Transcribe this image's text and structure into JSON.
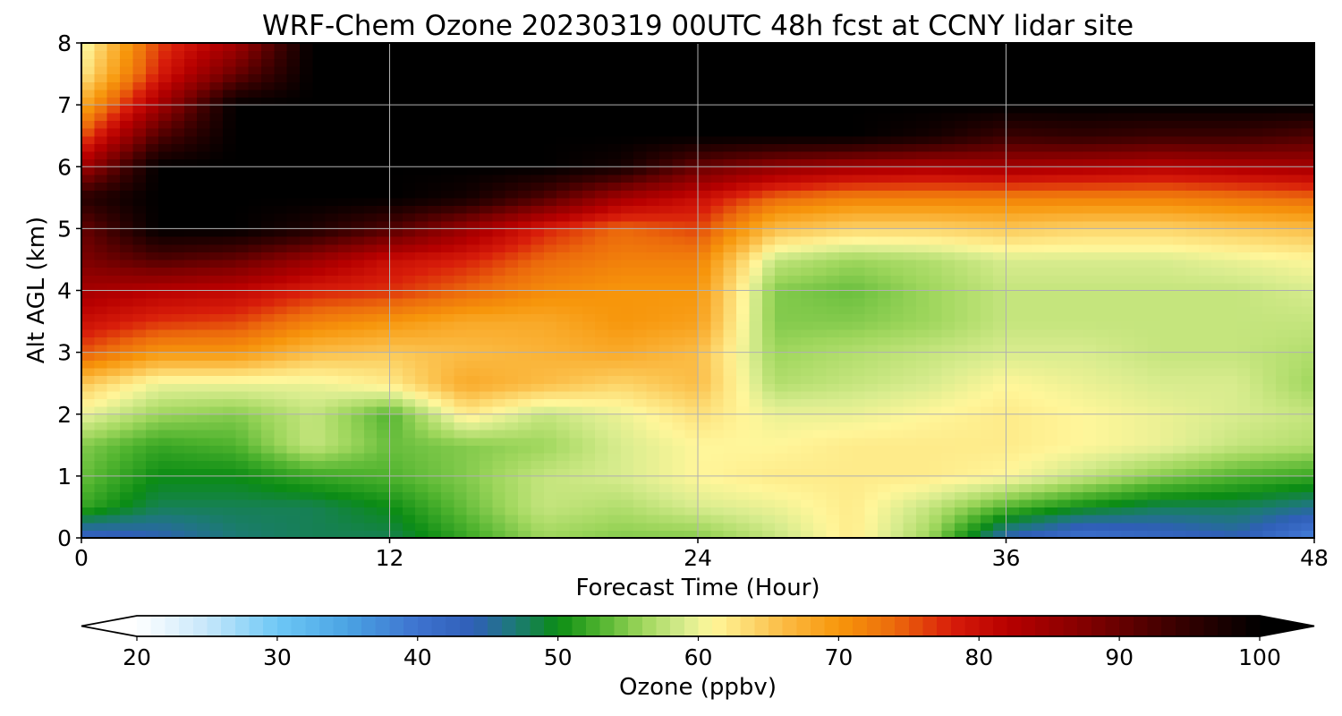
{
  "chart_data": {
    "type": "heatmap",
    "title": "WRF-Chem Ozone  20230319 00UTC 48h fcst at CCNY lidar site",
    "xlabel": "Forecast Time (Hour)",
    "ylabel": "Alt AGL (km)",
    "xlim": [
      0,
      48
    ],
    "ylim": [
      0,
      8
    ],
    "xticks": [
      "0",
      "12",
      "24",
      "36",
      "48"
    ],
    "yticks": [
      "0",
      "1",
      "2",
      "3",
      "4",
      "5",
      "6",
      "7",
      "8"
    ],
    "grid": true,
    "x_hours": [
      0,
      3,
      6,
      9,
      12,
      15,
      18,
      21,
      24,
      27,
      30,
      33,
      36,
      39,
      42,
      45,
      48
    ],
    "y_km": [
      0,
      0.5,
      1,
      1.5,
      2,
      2.5,
      3,
      3.5,
      4,
      4.5,
      5,
      5.5,
      6,
      6.5,
      7,
      7.5,
      8
    ],
    "ozone_ppbv": [
      [
        42,
        44,
        47,
        48,
        48,
        52,
        56,
        55,
        55,
        58,
        62,
        56,
        44,
        40,
        42,
        44,
        38
      ],
      [
        52,
        48,
        48,
        48,
        50,
        54,
        58,
        57,
        59,
        60,
        62,
        58,
        53,
        50,
        48,
        48,
        46
      ],
      [
        54,
        50,
        50,
        52,
        53,
        55,
        58,
        59,
        61,
        62,
        62,
        62,
        61,
        58,
        55,
        53,
        52
      ],
      [
        55,
        52,
        53,
        58,
        54,
        55,
        56,
        59,
        61,
        61,
        62,
        62,
        62,
        61,
        60,
        58,
        57
      ],
      [
        60,
        56,
        55,
        58,
        53,
        62,
        58,
        60,
        63,
        60,
        60,
        61,
        62,
        61,
        60,
        59,
        58
      ],
      [
        65,
        60,
        60,
        60,
        62,
        68,
        66,
        64,
        66,
        57,
        58,
        59,
        61,
        60,
        59,
        59,
        56
      ],
      [
        75,
        70,
        70,
        66,
        65,
        66,
        67,
        68,
        66,
        56,
        57,
        58,
        59,
        59,
        58,
        58,
        57
      ],
      [
        80,
        77,
        76,
        72,
        70,
        68,
        68,
        70,
        69,
        55,
        55,
        56,
        58,
        58,
        58,
        58,
        58
      ],
      [
        84,
        82,
        81,
        78,
        77,
        74,
        71,
        70,
        70,
        55,
        54,
        56,
        58,
        58,
        58,
        58,
        59
      ],
      [
        88,
        92,
        90,
        85,
        80,
        78,
        74,
        72,
        72,
        58,
        56,
        57,
        59,
        59,
        59,
        60,
        61
      ],
      [
        90,
        100,
        100,
        97,
        92,
        85,
        78,
        74,
        76,
        66,
        64,
        64,
        65,
        64,
        64,
        65,
        66
      ],
      [
        96,
        100,
        100,
        100,
        100,
        98,
        92,
        84,
        80,
        74,
        72,
        72,
        72,
        72,
        72,
        73,
        74
      ],
      [
        84,
        100,
        100,
        100,
        100,
        100,
        100,
        98,
        90,
        86,
        84,
        83,
        84,
        83,
        82,
        83,
        84
      ],
      [
        75,
        92,
        100,
        100,
        100,
        100,
        100,
        100,
        100,
        100,
        100,
        98,
        94,
        95,
        94,
        94,
        92
      ],
      [
        68,
        84,
        100,
        100,
        100,
        100,
        100,
        100,
        100,
        100,
        100,
        100,
        100,
        100,
        100,
        100,
        100
      ],
      [
        62,
        78,
        90,
        100,
        100,
        100,
        100,
        100,
        100,
        100,
        100,
        100,
        100,
        100,
        100,
        100,
        100
      ],
      [
        60,
        76,
        84,
        100,
        100,
        100,
        100,
        100,
        100,
        100,
        100,
        100,
        100,
        100,
        100,
        100,
        100
      ]
    ],
    "colorbar": {
      "label": "Ozone  (ppbv)",
      "min": 20,
      "max": 100,
      "ticks": [
        "20",
        "30",
        "40",
        "50",
        "60",
        "70",
        "80",
        "90",
        "100"
      ],
      "extend": "both"
    },
    "colormap": [
      {
        "v": 20,
        "c": "#ffffff"
      },
      {
        "v": 25,
        "c": "#c6e7fa"
      },
      {
        "v": 30,
        "c": "#6ec8f6"
      },
      {
        "v": 35,
        "c": "#4aa3e3"
      },
      {
        "v": 40,
        "c": "#3e72cf"
      },
      {
        "v": 44,
        "c": "#2f5fb7"
      },
      {
        "v": 47,
        "c": "#1c7a75"
      },
      {
        "v": 50,
        "c": "#0b8c14"
      },
      {
        "v": 53,
        "c": "#4fb32e"
      },
      {
        "v": 56,
        "c": "#9ed65c"
      },
      {
        "v": 59,
        "c": "#d8ec8e"
      },
      {
        "v": 61,
        "c": "#fff69a"
      },
      {
        "v": 63,
        "c": "#fde07a"
      },
      {
        "v": 66,
        "c": "#fbbc45"
      },
      {
        "v": 70,
        "c": "#f7960b"
      },
      {
        "v": 74,
        "c": "#ec6a0c"
      },
      {
        "v": 78,
        "c": "#d81d0a"
      },
      {
        "v": 82,
        "c": "#b80000"
      },
      {
        "v": 88,
        "c": "#7e0000"
      },
      {
        "v": 94,
        "c": "#3a0000"
      },
      {
        "v": 100,
        "c": "#000000"
      }
    ]
  }
}
